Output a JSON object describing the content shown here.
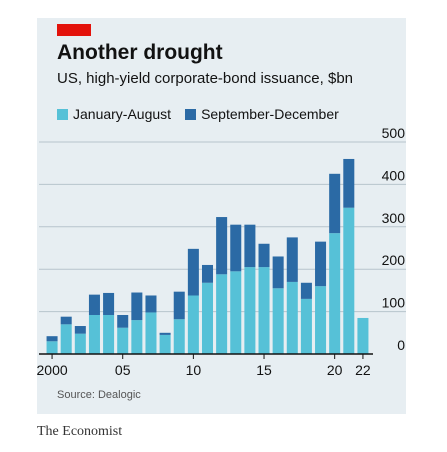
{
  "header": {
    "title": "Another drought",
    "subtitle": "US, high-yield corporate-bond issuance, $bn"
  },
  "source": "Source: Dealogic",
  "publisher": "The Economist",
  "colors": {
    "background": "#e7eef2",
    "jan_aug": "#56c1d7",
    "sep_dec": "#2b6aa5",
    "accent": "#e3120b"
  },
  "chart_data": {
    "type": "bar",
    "stacked": true,
    "title": "Another drought",
    "subtitle": "US, high-yield corporate-bond issuance, $bn",
    "xlabel": "",
    "ylabel": "",
    "ylim": [
      0,
      500
    ],
    "yticks": [
      0,
      100,
      200,
      300,
      400,
      500
    ],
    "y_axis_side": "right",
    "grid": true,
    "legend_position": "top-left",
    "categories": [
      "2000",
      "2001",
      "2002",
      "2003",
      "2004",
      "2005",
      "2006",
      "2007",
      "2008",
      "2009",
      "2010",
      "2011",
      "2012",
      "2013",
      "2014",
      "2015",
      "2016",
      "2017",
      "2018",
      "2019",
      "2020",
      "2021",
      "2022"
    ],
    "x_tick_labels": [
      {
        "category": "2000",
        "label": "2000"
      },
      {
        "category": "2005",
        "label": "05"
      },
      {
        "category": "2010",
        "label": "10"
      },
      {
        "category": "2015",
        "label": "15"
      },
      {
        "category": "2020",
        "label": "20"
      },
      {
        "category": "2022",
        "label": "22"
      }
    ],
    "series": [
      {
        "name": "January-August",
        "color": "#56c1d7",
        "values": [
          30,
          70,
          48,
          92,
          92,
          62,
          80,
          98,
          45,
          82,
          138,
          168,
          188,
          195,
          205,
          205,
          155,
          170,
          130,
          160,
          285,
          345,
          85
        ]
      },
      {
        "name": "September-December",
        "color": "#2b6aa5",
        "values": [
          12,
          18,
          18,
          48,
          52,
          30,
          65,
          40,
          5,
          65,
          110,
          42,
          135,
          110,
          100,
          55,
          75,
          105,
          38,
          105,
          140,
          115,
          0
        ]
      }
    ]
  }
}
